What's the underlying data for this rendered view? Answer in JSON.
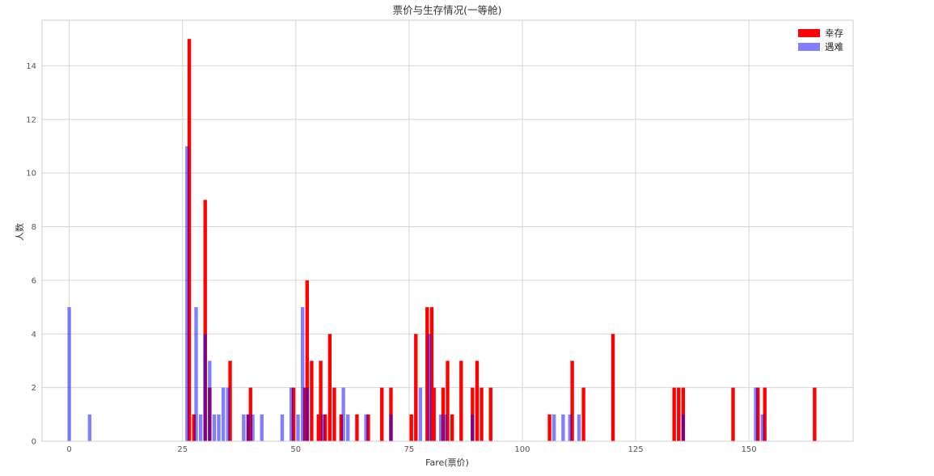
{
  "chart_data": {
    "type": "bar",
    "title": "票价与生存情况(一等舱)",
    "xlabel": "Fare(票价)",
    "ylabel": "人数",
    "xlim": [
      -6,
      173
    ],
    "ylim": [
      0,
      15.7
    ],
    "xticks": [
      "0",
      "25",
      "50",
      "75",
      "100",
      "125",
      "150"
    ],
    "yticks": [
      "0",
      "2",
      "4",
      "6",
      "8",
      "10",
      "12",
      "14"
    ],
    "grid": true,
    "legend_position": "top-right",
    "bin_width": 1,
    "series": [
      {
        "name": "幸存",
        "color": "#ff0000",
        "opacity": 1.0,
        "points": [
          [
            26.5,
            15
          ],
          [
            27.5,
            1
          ],
          [
            30,
            9
          ],
          [
            31,
            2
          ],
          [
            35.5,
            3
          ],
          [
            39.5,
            1
          ],
          [
            40,
            2
          ],
          [
            49.5,
            2
          ],
          [
            52,
            2
          ],
          [
            52.5,
            6
          ],
          [
            53.5,
            3
          ],
          [
            55,
            1
          ],
          [
            55.5,
            3
          ],
          [
            56.5,
            1
          ],
          [
            57.5,
            4
          ],
          [
            58.5,
            2
          ],
          [
            60,
            1
          ],
          [
            63.5,
            1
          ],
          [
            66,
            1
          ],
          [
            69,
            2
          ],
          [
            71,
            2
          ],
          [
            75.5,
            1
          ],
          [
            76.5,
            4
          ],
          [
            79,
            5
          ],
          [
            80,
            5
          ],
          [
            80.5,
            2
          ],
          [
            82.5,
            2
          ],
          [
            83.5,
            3
          ],
          [
            84.5,
            1
          ],
          [
            86.5,
            3
          ],
          [
            89,
            2
          ],
          [
            90,
            3
          ],
          [
            91,
            2
          ],
          [
            93,
            2
          ],
          [
            106,
            1
          ],
          [
            111,
            3
          ],
          [
            113.5,
            2
          ],
          [
            120,
            4
          ],
          [
            133.5,
            2
          ],
          [
            134.5,
            2
          ],
          [
            135.5,
            2
          ],
          [
            146.5,
            2
          ],
          [
            152,
            2
          ],
          [
            153.5,
            2
          ],
          [
            164.5,
            2
          ]
        ]
      },
      {
        "name": "遇难",
        "color": "#0000ff",
        "opacity": 0.5,
        "points": [
          [
            0,
            5
          ],
          [
            4.5,
            1
          ],
          [
            26,
            11
          ],
          [
            28,
            5
          ],
          [
            29,
            1
          ],
          [
            30,
            4
          ],
          [
            31,
            3
          ],
          [
            32,
            1
          ],
          [
            33,
            1
          ],
          [
            34,
            2
          ],
          [
            35,
            2
          ],
          [
            38.5,
            1
          ],
          [
            39.5,
            1
          ],
          [
            40.5,
            1
          ],
          [
            42.5,
            1
          ],
          [
            47,
            1
          ],
          [
            49,
            2
          ],
          [
            50.5,
            1
          ],
          [
            51.5,
            5
          ],
          [
            52.5,
            2
          ],
          [
            56,
            1
          ],
          [
            60.5,
            2
          ],
          [
            61.5,
            1
          ],
          [
            65.5,
            1
          ],
          [
            71,
            1
          ],
          [
            77.5,
            2
          ],
          [
            79.5,
            4
          ],
          [
            82,
            1
          ],
          [
            83,
            1
          ],
          [
            89,
            1
          ],
          [
            107,
            1
          ],
          [
            109,
            1
          ],
          [
            110.5,
            1
          ],
          [
            112.5,
            1
          ],
          [
            135.5,
            1
          ],
          [
            151.5,
            2
          ],
          [
            153,
            1
          ]
        ]
      }
    ]
  }
}
